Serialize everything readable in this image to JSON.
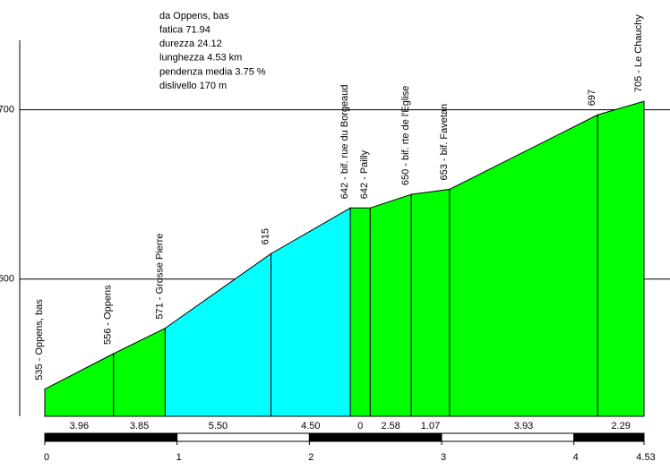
{
  "chart_data": {
    "type": "area",
    "info": [
      "da Oppens, bas",
      "fatica 71.94",
      "durezza 24.12",
      "lunghezza 4.53 km",
      "pendenza media 3.75 %",
      "dislivello 170 m"
    ],
    "x": [
      0,
      0.52,
      0.91,
      1.71,
      2.31,
      2.46,
      2.77,
      3.06,
      4.18,
      4.53
    ],
    "values": [
      535,
      556,
      571,
      615,
      642,
      642,
      650,
      653,
      697,
      705
    ],
    "point_labels": [
      "535 - Oppens, bas",
      "556 - Oppens",
      "571 - Grosse Pierre",
      "615",
      "642 - bif. rue du Borgeaud",
      "642 - Pailly",
      "650 - bif. rte de l'Eglise",
      "653 - bif. Favetan",
      "697",
      "705 - Le Chauchy"
    ],
    "segment_labels": [
      "3.96",
      "3.85",
      "5.50",
      "4.50",
      "0",
      "2.58",
      "1.07",
      "3.93",
      "2.29"
    ],
    "segment_colors": [
      "#00ff00",
      "#00ff00",
      "#00ffff",
      "#00ffff",
      "#00ff00",
      "#00ff00",
      "#00ff00",
      "#00ff00",
      "#00ff00"
    ],
    "xlim": [
      0,
      4.53
    ],
    "xticks": [
      0,
      1,
      2,
      3,
      4,
      4.53
    ],
    "ylim": [
      519,
      741
    ],
    "yticks": [
      600,
      700
    ],
    "grid": true
  }
}
